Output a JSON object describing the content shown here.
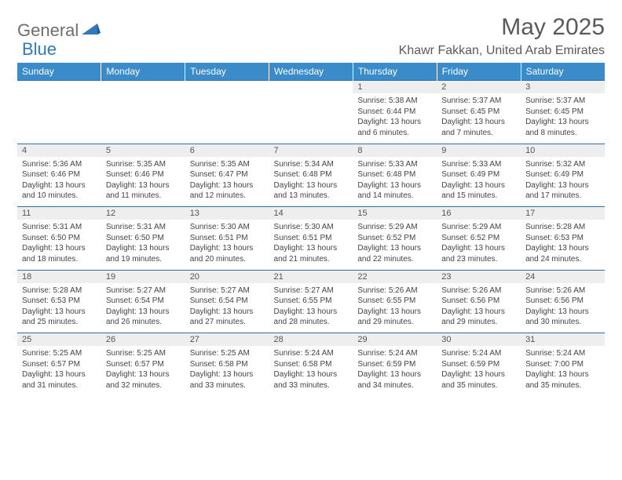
{
  "brand": {
    "part1": "General",
    "part2": "Blue"
  },
  "title": "May 2025",
  "location": "Khawr Fakkan, United Arab Emirates",
  "colors": {
    "header_bg": "#3a8bc9",
    "header_text": "#ffffff",
    "rule": "#2f6fa0",
    "daynum_bg": "#eeeeee",
    "logo_gray": "#6e6e6e",
    "logo_blue": "#2f7bbf"
  },
  "weekdays": [
    "Sunday",
    "Monday",
    "Tuesday",
    "Wednesday",
    "Thursday",
    "Friday",
    "Saturday"
  ],
  "weeks": [
    [
      null,
      null,
      null,
      null,
      {
        "d": "1",
        "sr": "5:38 AM",
        "ss": "6:44 PM",
        "dl": "13 hours and 6 minutes."
      },
      {
        "d": "2",
        "sr": "5:37 AM",
        "ss": "6:45 PM",
        "dl": "13 hours and 7 minutes."
      },
      {
        "d": "3",
        "sr": "5:37 AM",
        "ss": "6:45 PM",
        "dl": "13 hours and 8 minutes."
      }
    ],
    [
      {
        "d": "4",
        "sr": "5:36 AM",
        "ss": "6:46 PM",
        "dl": "13 hours and 10 minutes."
      },
      {
        "d": "5",
        "sr": "5:35 AM",
        "ss": "6:46 PM",
        "dl": "13 hours and 11 minutes."
      },
      {
        "d": "6",
        "sr": "5:35 AM",
        "ss": "6:47 PM",
        "dl": "13 hours and 12 minutes."
      },
      {
        "d": "7",
        "sr": "5:34 AM",
        "ss": "6:48 PM",
        "dl": "13 hours and 13 minutes."
      },
      {
        "d": "8",
        "sr": "5:33 AM",
        "ss": "6:48 PM",
        "dl": "13 hours and 14 minutes."
      },
      {
        "d": "9",
        "sr": "5:33 AM",
        "ss": "6:49 PM",
        "dl": "13 hours and 15 minutes."
      },
      {
        "d": "10",
        "sr": "5:32 AM",
        "ss": "6:49 PM",
        "dl": "13 hours and 17 minutes."
      }
    ],
    [
      {
        "d": "11",
        "sr": "5:31 AM",
        "ss": "6:50 PM",
        "dl": "13 hours and 18 minutes."
      },
      {
        "d": "12",
        "sr": "5:31 AM",
        "ss": "6:50 PM",
        "dl": "13 hours and 19 minutes."
      },
      {
        "d": "13",
        "sr": "5:30 AM",
        "ss": "6:51 PM",
        "dl": "13 hours and 20 minutes."
      },
      {
        "d": "14",
        "sr": "5:30 AM",
        "ss": "6:51 PM",
        "dl": "13 hours and 21 minutes."
      },
      {
        "d": "15",
        "sr": "5:29 AM",
        "ss": "6:52 PM",
        "dl": "13 hours and 22 minutes."
      },
      {
        "d": "16",
        "sr": "5:29 AM",
        "ss": "6:52 PM",
        "dl": "13 hours and 23 minutes."
      },
      {
        "d": "17",
        "sr": "5:28 AM",
        "ss": "6:53 PM",
        "dl": "13 hours and 24 minutes."
      }
    ],
    [
      {
        "d": "18",
        "sr": "5:28 AM",
        "ss": "6:53 PM",
        "dl": "13 hours and 25 minutes."
      },
      {
        "d": "19",
        "sr": "5:27 AM",
        "ss": "6:54 PM",
        "dl": "13 hours and 26 minutes."
      },
      {
        "d": "20",
        "sr": "5:27 AM",
        "ss": "6:54 PM",
        "dl": "13 hours and 27 minutes."
      },
      {
        "d": "21",
        "sr": "5:27 AM",
        "ss": "6:55 PM",
        "dl": "13 hours and 28 minutes."
      },
      {
        "d": "22",
        "sr": "5:26 AM",
        "ss": "6:55 PM",
        "dl": "13 hours and 29 minutes."
      },
      {
        "d": "23",
        "sr": "5:26 AM",
        "ss": "6:56 PM",
        "dl": "13 hours and 29 minutes."
      },
      {
        "d": "24",
        "sr": "5:26 AM",
        "ss": "6:56 PM",
        "dl": "13 hours and 30 minutes."
      }
    ],
    [
      {
        "d": "25",
        "sr": "5:25 AM",
        "ss": "6:57 PM",
        "dl": "13 hours and 31 minutes."
      },
      {
        "d": "26",
        "sr": "5:25 AM",
        "ss": "6:57 PM",
        "dl": "13 hours and 32 minutes."
      },
      {
        "d": "27",
        "sr": "5:25 AM",
        "ss": "6:58 PM",
        "dl": "13 hours and 33 minutes."
      },
      {
        "d": "28",
        "sr": "5:24 AM",
        "ss": "6:58 PM",
        "dl": "13 hours and 33 minutes."
      },
      {
        "d": "29",
        "sr": "5:24 AM",
        "ss": "6:59 PM",
        "dl": "13 hours and 34 minutes."
      },
      {
        "d": "30",
        "sr": "5:24 AM",
        "ss": "6:59 PM",
        "dl": "13 hours and 35 minutes."
      },
      {
        "d": "31",
        "sr": "5:24 AM",
        "ss": "7:00 PM",
        "dl": "13 hours and 35 minutes."
      }
    ]
  ],
  "labels": {
    "sunrise": "Sunrise:",
    "sunset": "Sunset:",
    "daylight": "Daylight:"
  }
}
